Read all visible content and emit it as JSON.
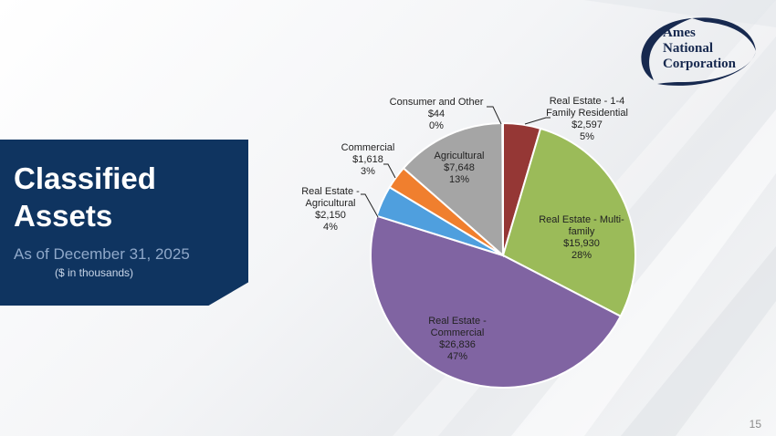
{
  "slide": {
    "title": "Classified Assets",
    "subtitle": "As of December 31, 2025",
    "note": "($ in thousands)",
    "page_number": "15"
  },
  "logo": {
    "line1": "Ames",
    "line2": "National",
    "line3": "Corporation"
  },
  "colors": {
    "title_box": "#0f3460",
    "logo_navy": "#17294f"
  },
  "chart_data": {
    "type": "pie",
    "slices": [
      {
        "label_lines": [
          "Real Estate - 1-4",
          "Family Residential"
        ],
        "value": 2597,
        "value_label": "$2,597",
        "percent_label": "5%",
        "color": "#953735"
      },
      {
        "label_lines": [
          "Real Estate - Multi-",
          "family"
        ],
        "value": 15930,
        "value_label": "$15,930",
        "percent_label": "28%",
        "color": "#9bbb59"
      },
      {
        "label_lines": [
          "Real Estate -",
          "Commercial"
        ],
        "value": 26836,
        "value_label": "$26,836",
        "percent_label": "47%",
        "color": "#8064a2"
      },
      {
        "label_lines": [
          "Real Estate -",
          "Agricultural"
        ],
        "value": 2150,
        "value_label": "$2,150",
        "percent_label": "4%",
        "color": "#4f9fde"
      },
      {
        "label_lines": [
          "Commercial"
        ],
        "value": 1618,
        "value_label": "$1,618",
        "percent_label": "3%",
        "color": "#f07f2e"
      },
      {
        "label_lines": [
          "Agricultural"
        ],
        "value": 7648,
        "value_label": "$7,648",
        "percent_label": "13%",
        "color": "#a5a5a5"
      },
      {
        "label_lines": [
          "Consumer and Other"
        ],
        "value": 44,
        "value_label": "$44",
        "percent_label": "0%",
        "color": "#2e75b6"
      }
    ]
  }
}
